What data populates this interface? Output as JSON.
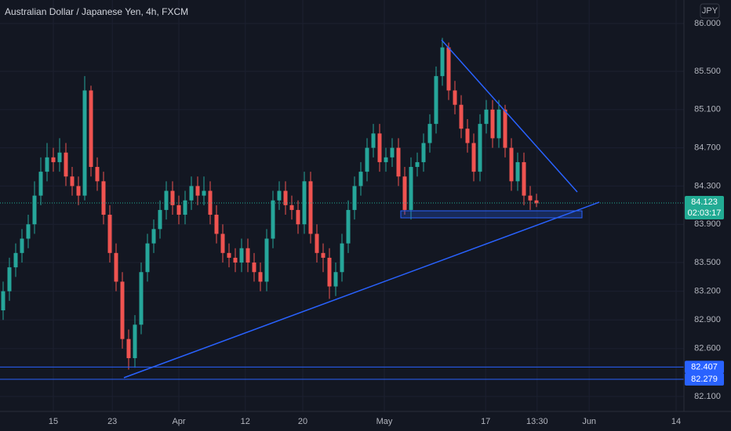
{
  "chart_data": {
    "type": "candlestick",
    "title": "Australian Dollar / Japanese Yen, 4h, FXCM",
    "currency": "JPY",
    "up_color": "#26a69a",
    "down_color": "#ef5350",
    "xlim": [
      -0.5,
      108.5
    ],
    "ylim": [
      81.943,
      86.246
    ],
    "grid": true,
    "xticks": [
      {
        "value": 8,
        "label": "15"
      },
      {
        "value": 17.4,
        "label": "23"
      },
      {
        "value": 28,
        "label": "Apr"
      },
      {
        "value": 38.6,
        "label": "12"
      },
      {
        "value": 47.75,
        "label": "20"
      },
      {
        "value": 60.75,
        "label": "May"
      },
      {
        "value": 76.9,
        "label": "17"
      },
      {
        "value": 85.1,
        "label": "13:30"
      },
      {
        "value": 93.4,
        "label": "Jun"
      },
      {
        "value": 107.25,
        "label": "14"
      }
    ],
    "yticks": [
      {
        "value": 86.0,
        "label": "86.000"
      },
      {
        "value": 85.5,
        "label": "85.500"
      },
      {
        "value": 85.1,
        "label": "85.100"
      },
      {
        "value": 84.7,
        "label": "84.700"
      },
      {
        "value": 84.3,
        "label": "84.300"
      },
      {
        "value": 83.9,
        "label": "83.900"
      },
      {
        "value": 83.5,
        "label": "83.500"
      },
      {
        "value": 83.2,
        "label": "83.200"
      },
      {
        "value": 82.9,
        "label": "82.900"
      },
      {
        "value": 82.6,
        "label": "82.600"
      },
      {
        "value": 82.1,
        "label": "82.100"
      }
    ],
    "horizontal_lines": [
      {
        "value": 82.407,
        "label": "82.407",
        "color": "#2962ff"
      },
      {
        "value": 82.279,
        "label": "82.279",
        "color": "#2962ff"
      }
    ],
    "last_price": {
      "value": 84.123,
      "label": "84.123",
      "countdown": "02:03:17",
      "color": "#22ab94"
    },
    "open": [
      83.0,
      83.2,
      83.45,
      83.6,
      83.75,
      83.9,
      84.2,
      84.45,
      84.6,
      84.55,
      84.65,
      84.4,
      84.3,
      84.2,
      85.3,
      84.5,
      84.35,
      84.0,
      83.6,
      83.3,
      82.7,
      82.5,
      82.85,
      83.4,
      83.7,
      83.85,
      84.05,
      84.25,
      84.1,
      84.0,
      84.15,
      84.3,
      84.2,
      84.25,
      84.0,
      83.8,
      83.6,
      83.55,
      83.5,
      83.65,
      83.5,
      83.4,
      83.3,
      83.75,
      84.15,
      84.25,
      84.1,
      84.05,
      83.9,
      84.35,
      83.8,
      83.6,
      83.55,
      83.25,
      83.4,
      83.7,
      84.05,
      84.3,
      84.45,
      84.7,
      84.85,
      84.55,
      84.6,
      84.7,
      84.4,
      84.05,
      84.5,
      84.55,
      84.75,
      84.95,
      85.45,
      85.75,
      85.3,
      85.15,
      84.9,
      84.75,
      84.45,
      84.95,
      85.1,
      84.8,
      85.1,
      84.7,
      84.35,
      84.55,
      84.2,
      84.15
    ],
    "high": [
      83.3,
      83.55,
      83.7,
      83.85,
      84.0,
      84.35,
      84.6,
      84.75,
      84.7,
      84.8,
      84.75,
      84.5,
      84.4,
      85.45,
      85.35,
      84.6,
      84.45,
      84.1,
      83.7,
      83.4,
      82.8,
      82.95,
      83.5,
      83.8,
      83.95,
      84.15,
      84.35,
      84.35,
      84.2,
      84.25,
      84.4,
      84.4,
      84.4,
      84.35,
      84.1,
      83.9,
      83.7,
      83.65,
      83.75,
      83.75,
      83.6,
      83.5,
      83.85,
      84.25,
      84.35,
      84.35,
      84.2,
      84.15,
      84.45,
      84.45,
      83.9,
      83.7,
      83.65,
      83.5,
      83.8,
      84.15,
      84.4,
      84.55,
      84.8,
      84.95,
      84.95,
      84.7,
      84.8,
      84.8,
      84.5,
      84.6,
      84.65,
      84.85,
      85.05,
      85.55,
      85.85,
      85.8,
      85.4,
      85.25,
      85.0,
      84.85,
      85.05,
      85.2,
      85.2,
      85.2,
      85.15,
      84.8,
      84.65,
      84.65,
      84.3,
      84.22
    ],
    "low": [
      82.9,
      83.1,
      83.35,
      83.5,
      83.65,
      83.8,
      84.1,
      84.35,
      84.45,
      84.45,
      84.3,
      84.2,
      84.1,
      84.15,
      84.4,
      84.25,
      83.9,
      83.5,
      83.2,
      82.6,
      82.38,
      82.4,
      82.75,
      83.3,
      83.6,
      83.75,
      83.95,
      84.0,
      83.9,
      83.9,
      84.05,
      84.1,
      84.1,
      83.9,
      83.7,
      83.5,
      83.45,
      83.4,
      83.4,
      83.4,
      83.3,
      83.2,
      83.2,
      83.65,
      84.05,
      84.0,
      83.95,
      83.8,
      83.8,
      83.7,
      83.5,
      83.4,
      83.12,
      83.15,
      83.3,
      83.6,
      83.95,
      84.2,
      84.35,
      84.6,
      84.45,
      84.45,
      84.5,
      84.3,
      84.0,
      83.95,
      84.4,
      84.45,
      84.65,
      84.85,
      85.35,
      85.2,
      85.05,
      84.8,
      84.65,
      84.35,
      84.35,
      84.85,
      84.7,
      84.7,
      84.6,
      84.25,
      84.25,
      84.1,
      84.05,
      84.08
    ],
    "close": [
      83.2,
      83.45,
      83.6,
      83.75,
      83.9,
      84.2,
      84.45,
      84.6,
      84.55,
      84.65,
      84.4,
      84.3,
      84.2,
      85.3,
      84.5,
      84.35,
      84.0,
      83.6,
      83.3,
      82.7,
      82.5,
      82.85,
      83.4,
      83.7,
      83.85,
      84.05,
      84.25,
      84.1,
      84.0,
      84.15,
      84.3,
      84.2,
      84.25,
      84.0,
      83.8,
      83.6,
      83.55,
      83.5,
      83.65,
      83.5,
      83.4,
      83.3,
      83.75,
      84.15,
      84.25,
      84.1,
      84.05,
      83.9,
      84.35,
      83.8,
      83.6,
      83.55,
      83.25,
      83.4,
      83.7,
      84.05,
      84.3,
      84.45,
      84.7,
      84.85,
      84.55,
      84.6,
      84.7,
      84.4,
      84.05,
      84.5,
      84.55,
      84.75,
      84.95,
      85.45,
      85.75,
      85.3,
      85.15,
      84.9,
      84.75,
      84.45,
      84.95,
      85.1,
      84.8,
      85.1,
      84.7,
      84.35,
      84.55,
      84.2,
      84.15,
      84.12
    ]
  }
}
